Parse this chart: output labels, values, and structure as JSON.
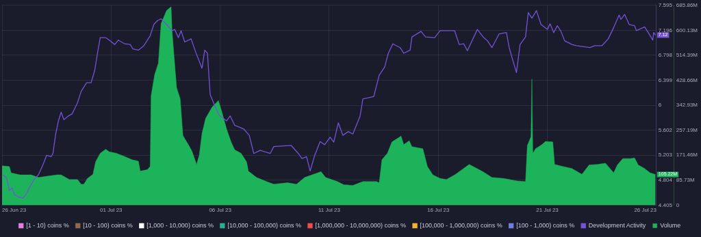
{
  "chart_data": {
    "type": "line",
    "xlim": [
      "--06-26",
      "--07-26"
    ],
    "xticks": [
      {
        "value": "--06-26",
        "label": "26 Jun 23"
      },
      {
        "value": "--07-01",
        "label": "01 Jul 23"
      },
      {
        "value": "--07-06",
        "label": "06 Jul 23"
      },
      {
        "value": "--07-11",
        "label": "11 Jul 23"
      },
      {
        "value": "--07-16",
        "label": "16 Jul 23"
      },
      {
        "value": "--07-21",
        "label": "21 Jul 23"
      },
      {
        "value": "--07-26",
        "label": "26 Jul 23"
      }
    ],
    "ylim": [
      4.405,
      7.595
    ],
    "yticks": [
      4.405,
      4.804,
      5.203,
      5.602,
      6,
      6.399,
      6.798,
      7.196,
      7.595
    ],
    "y2lim": [
      0,
      685.86
    ],
    "y2ticks": [
      0,
      {
        "value": 85.73,
        "label": "85.73M"
      },
      {
        "value": 171.46,
        "label": "171.46M"
      },
      {
        "value": 257.19,
        "label": "257.19M"
      },
      {
        "value": 342.93,
        "label": "342.93M"
      },
      {
        "value": 428.66,
        "label": "428.66M"
      },
      {
        "value": 514.39,
        "label": "514.39M"
      },
      {
        "value": 600.13,
        "label": "600.13M"
      },
      {
        "value": 685.86,
        "label": "685.86M"
      }
    ],
    "grid": true,
    "legend": "bottom",
    "marker": "none",
    "line_style": "solid",
    "series": [
      {
        "name": "[1 - 10) coins %",
        "color": "#e27fe0"
      },
      {
        "name": "[10 - 100) coins %",
        "color": "#8c6a4e"
      },
      {
        "name": "[1,000 - 10,000) coins %",
        "color": "#ffffff"
      },
      {
        "name": "[10,000 - 100,000) coins %",
        "color": "#2bae8c"
      },
      {
        "name": "[1,000,000 - 10,000,000) coins %",
        "color": "#ef4e4e"
      },
      {
        "name": "[100,000 - 1,000,000) coins %",
        "color": "#f5b233"
      },
      {
        "name": "[100 - 1,000) coins %",
        "color": "#6f7de8"
      },
      {
        "name": "Development Activity",
        "type": "line",
        "axis": "y",
        "color": "#7452d9",
        "x": [
          "--06-26T01:00",
          "--06-26T05:00",
          "--06-26T08:00",
          "--06-26T11:00",
          "--06-26T14:00",
          "--06-26T19:00",
          "--06-26T23:00",
          "--06-27T02:00",
          "--06-27T06:00",
          "--06-27T11:00",
          "--06-27T16:00",
          "--06-27T21:00",
          "--06-28T01:00",
          "--06-28T06:00",
          "--06-28T08:00",
          "--06-28T11:00",
          "--06-28T14:00",
          "--06-28T17:00",
          "--06-28T20:00",
          "--06-29T01:00",
          "--06-29T05:00",
          "--06-29T11:00",
          "--06-29T15:00",
          "--06-29T21:00",
          "--06-30T02:00",
          "--06-30T06:00",
          "--06-30T09:00",
          "--06-30T12:00",
          "--06-30T18:00",
          "--06-30T22:00",
          "--07-01T04:00",
          "--07-01T08:00",
          "--07-01T15:00",
          "--07-01T21:00",
          "--07-02T00:00",
          "--07-02T06:00",
          "--07-02T12:00",
          "--07-02T19:00",
          "--07-02T23:00",
          "--07-03T03:00",
          "--07-03T07:00",
          "--07-03T13:00",
          "--07-03T19:00",
          "--07-03T22:00",
          "--07-04T02:00",
          "--07-04T05:00",
          "--07-04T09:00",
          "--07-04T16:00",
          "--07-04T21:00",
          "--07-05T04:00",
          "--07-05T07:00",
          "--07-05T10:00",
          "--07-05T13:00",
          "--07-05T19:00",
          "--07-05T23:00",
          "--07-06T07:00",
          "--07-06T11:00",
          "--07-06T16:00",
          "--07-07T02:00",
          "--07-07T08:00",
          "--07-07T13:00",
          "--07-07T20:00",
          "--07-08T07:00",
          "--07-08T11:00",
          "--07-09T06:00",
          "--07-09T14:00",
          "--07-09T18:00",
          "--07-09T23:00",
          "--07-10T03:00",
          "--07-10T08:00",
          "--07-10T14:00",
          "--07-10T19:00",
          "--07-11T01:00",
          "--07-11T05:00",
          "--07-11T10:00",
          "--07-11T15:00",
          "--07-11T21:00",
          "--07-12T02:00",
          "--07-12T10:00",
          "--07-12T13:00",
          "--07-13T01:00",
          "--07-13T07:00",
          "--07-13T13:00",
          "--07-13T17:00",
          "--07-13T22:00",
          "--07-14T06:00",
          "--07-14T10:00",
          "--07-14T17:00",
          "--07-14T19:00",
          "--07-15T05:00",
          "--07-15T10:00",
          "--07-15T20:00",
          "--07-16T02:00",
          "--07-16T18:00",
          "--07-16T23:00",
          "--07-17T04:00",
          "--07-17T08:00",
          "--07-17T19:00",
          "--07-18T02:00",
          "--07-18T06:00",
          "--07-18T11:00",
          "--07-18T19:00",
          "--07-19T03:00",
          "--07-19T06:00",
          "--07-19T14:00",
          "--07-19T18:00",
          "--07-20T00:00",
          "--07-20T03:00",
          "--07-20T07:00",
          "--07-20T12:00",
          "--07-20T17:00",
          "--07-21T00:00",
          "--07-21T03:00",
          "--07-21T07:00",
          "--07-21T11:00",
          "--07-21T15:00",
          "--07-21T19:00",
          "--07-22T03:00",
          "--07-22T08:00",
          "--07-22T23:00",
          "--07-23T04:00",
          "--07-23T12:00",
          "--07-23T19:00",
          "--07-24T01:00",
          "--07-24T07:00",
          "--07-24T09:00",
          "--07-24T13:00",
          "--07-24T18:00",
          "--07-25T00:00",
          "--07-25T02:00",
          "--07-25T11:00",
          "--07-25T15:00",
          "--07-25T20:00",
          "--07-25T21:00",
          "--07-25T23:00"
        ],
        "values": [
          4.89,
          4.84,
          4.64,
          4.68,
          4.57,
          4.53,
          4.52,
          4.57,
          4.68,
          4.81,
          4.89,
          5.05,
          5.2,
          5.18,
          5.23,
          5.54,
          5.75,
          5.89,
          5.77,
          5.83,
          5.86,
          6.04,
          6.22,
          6.36,
          6.36,
          6.56,
          6.83,
          7.08,
          7.08,
          7.04,
          6.97,
          7.04,
          6.98,
          6.97,
          6.9,
          6.88,
          6.95,
          7.11,
          7.29,
          7.35,
          7.38,
          7.29,
          7.19,
          7.21,
          7.08,
          7.19,
          7.01,
          7.06,
          6.85,
          6.59,
          6.88,
          6.83,
          6.17,
          5.96,
          5.84,
          5.75,
          5.83,
          5.68,
          5.62,
          5.52,
          5.23,
          5.28,
          5.23,
          5.34,
          5.36,
          5.23,
          5.15,
          5.18,
          4.95,
          5.2,
          5.42,
          5.37,
          5.49,
          5.41,
          5.72,
          5.52,
          5.58,
          5.54,
          5.83,
          6.1,
          6.14,
          6.48,
          6.61,
          6.83,
          6.98,
          6.92,
          6.83,
          6.88,
          7.09,
          7.18,
          7.09,
          7.08,
          7.19,
          7.19,
          6.97,
          6.98,
          6.87,
          7.21,
          7.08,
          7.03,
          6.92,
          7.14,
          7.16,
          6.92,
          6.52,
          6.97,
          7.09,
          7.48,
          7.39,
          7.51,
          7.29,
          7.21,
          7.3,
          7.16,
          7.27,
          7.18,
          7.03,
          6.97,
          6.95,
          6.92,
          6.95,
          6.95,
          7.06,
          7.24,
          7.44,
          7.37,
          7.45,
          7.29,
          7.27,
          7.19,
          7.25,
          7.16,
          7.04,
          7.16,
          7.12
        ],
        "value_labels": [
          null,
          null,
          null,
          null,
          null,
          null,
          null,
          null,
          null,
          null,
          null,
          null,
          null,
          null,
          null,
          null,
          null,
          null,
          null,
          null,
          null,
          null,
          null,
          null,
          null,
          null,
          null,
          null,
          null,
          null,
          null,
          null,
          null,
          null,
          null,
          null,
          null,
          null,
          null,
          null,
          null,
          null,
          null,
          null,
          null,
          null,
          null,
          null,
          null,
          null,
          null,
          null,
          null,
          null,
          null,
          null,
          null,
          null,
          null,
          null,
          null,
          null,
          null,
          null,
          null,
          null,
          null,
          null,
          null,
          null,
          null,
          null,
          null,
          null,
          null,
          null,
          null,
          null,
          null,
          null,
          null,
          null,
          null,
          null,
          null,
          null,
          null,
          null,
          null,
          null,
          null,
          null,
          null,
          null,
          null,
          null,
          null,
          null,
          null,
          null,
          null,
          null,
          null,
          null,
          null,
          null,
          null,
          null,
          null,
          null,
          null,
          null,
          null,
          null,
          null,
          null,
          null,
          null,
          null,
          null,
          null,
          null,
          null,
          null,
          null,
          null,
          null,
          null,
          null,
          null,
          null,
          null,
          null,
          null,
          "7.12"
        ]
      },
      {
        "name": "Volume",
        "type": "area",
        "axis": "y2",
        "color": "#1db35b",
        "x": [
          "--06-26T00:00",
          "--06-26T08:00",
          "--06-26T10:00",
          "--06-26T17:00",
          "--06-26T20:00",
          "--06-27T08:00",
          "--06-27T16:00",
          "--06-28T12:00",
          "--06-28T17:00",
          "--06-29T02:00",
          "--06-29T11:00",
          "--06-29T15:00",
          "--06-29T18:00",
          "--06-29T22:00",
          "--06-30T04:00",
          "--06-30T07:00",
          "--06-30T12:00",
          "--06-30T18:00",
          "--06-30T22:00",
          "--07-01T06:00",
          "--07-01T15:00",
          "--07-01T23:00",
          "--07-02T06:00",
          "--07-02T08:00",
          "--07-02T16:00",
          "--07-02T19:00",
          "--07-02T20:00",
          "--07-03T00:00",
          "--07-03T04:00",
          "--07-03T07:00",
          "--07-03T13:00",
          "--07-03T18:00",
          "--07-03T19:00",
          "--07-04T00:00",
          "--07-04T04:00",
          "--07-04T07:00",
          "--07-04T13:00",
          "--07-04T17:00",
          "--07-04T22:00",
          "--07-05T01:00",
          "--07-05T04:00",
          "--07-05T08:00",
          "--07-05T15:00",
          "--07-05T22:00",
          "--07-06T01:00",
          "--07-06T07:00",
          "--07-06T12:00",
          "--07-06T16:00",
          "--07-06T23:00",
          "--07-07T05:00",
          "--07-07T07:00",
          "--07-07T16:00",
          "--07-08T03:00",
          "--07-08T11:00",
          "--07-09T02:00",
          "--07-09T12:00",
          "--07-09T21:00",
          "--07-10T05:00",
          "--07-10T15:00",
          "--07-10T20:00",
          "--07-11T09:00",
          "--07-11T16:00",
          "--07-12T02:00",
          "--07-12T13:00",
          "--07-13T04:00",
          "--07-13T07:00",
          "--07-13T10:00",
          "--07-13T16:00",
          "--07-13T21:00",
          "--07-14T07:00",
          "--07-14T10:00",
          "--07-14T16:00",
          "--07-14T19:00",
          "--07-15T07:00",
          "--07-15T12:00",
          "--07-15T18:00",
          "--07-16T02:00",
          "--07-16T09:00",
          "--07-16T19:00",
          "--07-17T10:00",
          "--07-18T01:00",
          "--07-18T11:00",
          "--07-19T00:00",
          "--07-19T15:00",
          "--07-20T00:00",
          "--07-20T02:00",
          "--07-20T06:00",
          "--07-20T07:00",
          "--07-20T08:00",
          "--07-20T11:00",
          "--07-20T18:00",
          "--07-20T22:00",
          "--07-21T06:00",
          "--07-21T08:00",
          "--07-21T17:00",
          "--07-22T03:00",
          "--07-22T08:00",
          "--07-22T14:00",
          "--07-22T22:00",
          "--07-23T07:00",
          "--07-23T16:00",
          "--07-23T20:00",
          "--07-24T01:00",
          "--07-24T05:00",
          "--07-24T11:00",
          "--07-24T19:00",
          "--07-25T00:00",
          "--07-25T04:00",
          "--07-25T11:00",
          "--07-25T17:00",
          "--07-25T23:00"
        ],
        "values": [
          135,
          133,
          111,
          106,
          104,
          104,
          95,
          104,
          104,
          88,
          88,
          72,
          72,
          92,
          106,
          149,
          178,
          192,
          183,
          178,
          167,
          156,
          151,
          117,
          122,
          133,
          375,
          449,
          487,
          623,
          668,
          681,
          600,
          404,
          365,
          239,
          208,
          185,
          140,
          171,
          246,
          298,
          336,
          359,
          329,
          262,
          217,
          190,
          178,
          149,
          117,
          95,
          81,
          72,
          77,
          72,
          95,
          104,
          115,
          95,
          81,
          70,
          68,
          81,
          81,
          77,
          156,
          178,
          217,
          237,
          208,
          221,
          201,
          194,
          133,
          104,
          92,
          88,
          106,
          140,
          115,
          95,
          92,
          83,
          81,
          205,
          235,
          433,
          178,
          194,
          208,
          219,
          217,
          140,
          133,
          126,
          117,
          106,
          138,
          140,
          144,
          129,
          111,
          138,
          160,
          160,
          162,
          138,
          126,
          111,
          105.22
        ],
        "value_labels": [
          null,
          null,
          null,
          null,
          null,
          null,
          null,
          null,
          null,
          null,
          null,
          null,
          null,
          null,
          null,
          null,
          null,
          null,
          null,
          null,
          null,
          null,
          null,
          null,
          null,
          null,
          null,
          null,
          null,
          null,
          null,
          null,
          null,
          null,
          null,
          null,
          null,
          null,
          null,
          null,
          null,
          null,
          null,
          null,
          null,
          null,
          null,
          null,
          null,
          null,
          null,
          null,
          null,
          null,
          null,
          null,
          null,
          null,
          null,
          null,
          null,
          null,
          null,
          null,
          null,
          null,
          null,
          null,
          null,
          null,
          null,
          null,
          null,
          null,
          null,
          null,
          null,
          null,
          null,
          null,
          null,
          null,
          null,
          null,
          null,
          null,
          null,
          null,
          null,
          null,
          null,
          null,
          null,
          null,
          null,
          null,
          null,
          null,
          null,
          null,
          null,
          null,
          null,
          null,
          null,
          null,
          null,
          null,
          null,
          null,
          "105.22M"
        ]
      }
    ]
  }
}
